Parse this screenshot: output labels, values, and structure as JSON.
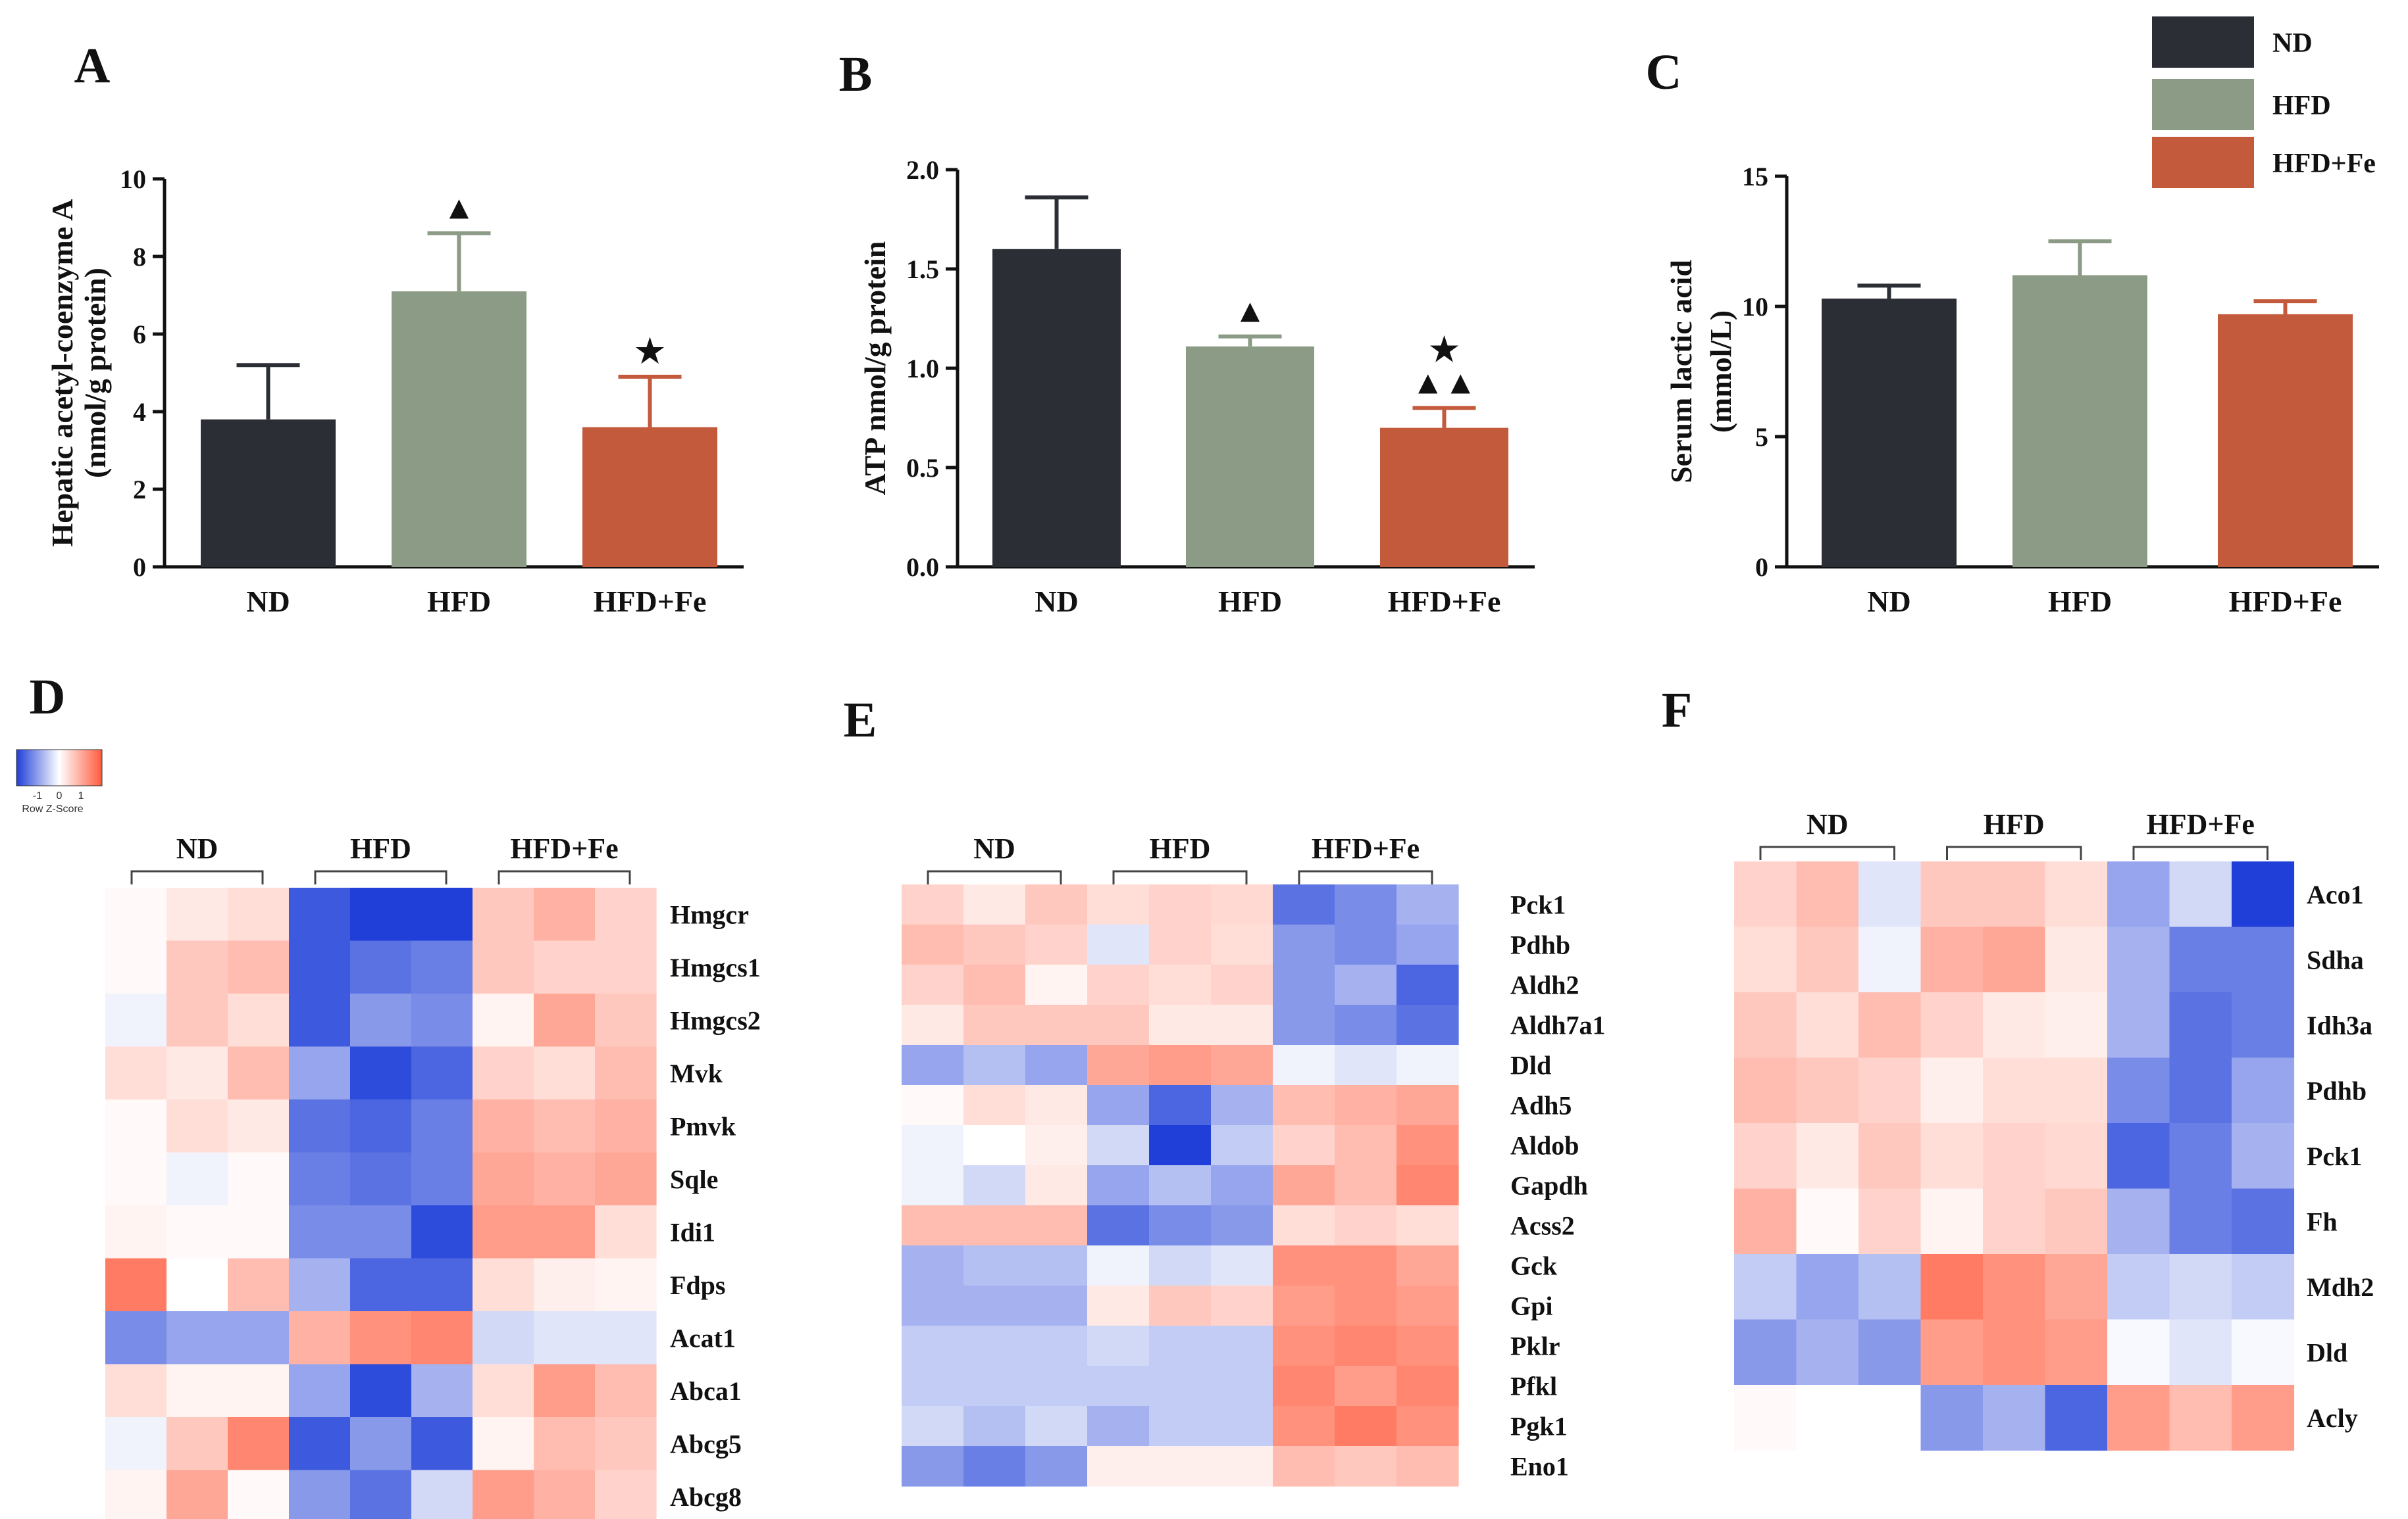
{
  "colors": {
    "nd": "#2b2e35",
    "hfd": "#8c9b86",
    "hfdfe": "#c45a3c",
    "heat_low": "#1f3fd8",
    "heat_mid": "#ffffff",
    "heat_high": "#ff5a3c"
  },
  "legend": {
    "entries": [
      {
        "label": "ND",
        "color": "#2b2e35"
      },
      {
        "label": "HFD",
        "color": "#8c9b86"
      },
      {
        "label": "HFD+Fe",
        "color": "#c45a3c"
      }
    ]
  },
  "chart_data": [
    {
      "type": "bar",
      "panel": "A",
      "ylabel_line1": "Hepatic acetyl-coenzyme A",
      "ylabel_line2": "(nmol/g protein)",
      "categories": [
        "ND",
        "HFD",
        "HFD+Fe"
      ],
      "values": [
        3.8,
        7.1,
        3.6
      ],
      "errors": [
        1.4,
        1.5,
        1.3
      ],
      "ylim": [
        0,
        10
      ],
      "yticks": [
        0,
        2,
        4,
        6,
        8,
        10
      ],
      "ytick_labels": [
        "0",
        "2",
        "4",
        "6",
        "8",
        "10"
      ],
      "annotations": [
        {
          "category": "HFD",
          "text": "▲"
        },
        {
          "category": "HFD+Fe",
          "text": "★"
        }
      ]
    },
    {
      "type": "bar",
      "panel": "B",
      "ylabel_line1": "ATP nmol/g protein",
      "ylabel_line2": "",
      "categories": [
        "ND",
        "HFD",
        "HFD+Fe"
      ],
      "values": [
        1.6,
        1.11,
        0.7
      ],
      "errors": [
        0.26,
        0.05,
        0.1
      ],
      "ylim": [
        0,
        2.0
      ],
      "yticks": [
        0,
        0.5,
        1.0,
        1.5,
        2.0
      ],
      "ytick_labels": [
        "0.0",
        "0.5",
        "1.0",
        "1.5",
        "2.0"
      ],
      "annotations": [
        {
          "category": "HFD",
          "text": "▲"
        },
        {
          "category": "HFD+Fe",
          "text": "★"
        },
        {
          "category": "HFD+Fe",
          "text": "▲▲"
        }
      ]
    },
    {
      "type": "bar",
      "panel": "C",
      "ylabel_line1": "Serum lactic acid",
      "ylabel_line2": "(mmol/L)",
      "categories": [
        "ND",
        "HFD",
        "HFD+Fe"
      ],
      "values": [
        10.3,
        11.2,
        9.7
      ],
      "errors": [
        0.5,
        1.3,
        0.5
      ],
      "ylim": [
        0,
        15
      ],
      "yticks": [
        0,
        5,
        10,
        15
      ],
      "ytick_labels": [
        "0",
        "5",
        "10",
        "15"
      ],
      "annotations": []
    },
    {
      "type": "heatmap",
      "panel": "D",
      "groups": [
        "ND",
        "HFD",
        "HFD+Fe"
      ],
      "colorscale_title": "Row Z-Score",
      "colorscale_ticks": [
        "-1",
        "0",
        "1"
      ],
      "rows": [
        "Hmgcr",
        "Hmgcs1",
        "Hmgcs2",
        "Mvk",
        "Pmvk",
        "Sqle",
        "Idi1",
        "Fdps",
        "Acat1",
        "Abca1",
        "Abcg5",
        "Abcg8"
      ],
      "values": [
        [
          0.05,
          0.2,
          0.3,
          -1.3,
          -1.5,
          -1.5,
          0.5,
          0.7,
          0.4
        ],
        [
          0.05,
          0.5,
          0.6,
          -1.3,
          -1.1,
          -1.0,
          0.5,
          0.4,
          0.4
        ],
        [
          -0.1,
          0.5,
          0.3,
          -1.3,
          -0.8,
          -0.9,
          0.1,
          0.8,
          0.5
        ],
        [
          0.3,
          0.2,
          0.6,
          -0.7,
          -1.4,
          -1.2,
          0.4,
          0.3,
          0.6
        ],
        [
          0.05,
          0.3,
          0.2,
          -1.1,
          -1.2,
          -1.0,
          0.7,
          0.6,
          0.7
        ],
        [
          0.05,
          -0.1,
          0.05,
          -1.0,
          -1.1,
          -1.0,
          0.8,
          0.7,
          0.8
        ],
        [
          0.1,
          0.05,
          0.05,
          -0.9,
          -0.9,
          -1.4,
          0.9,
          0.9,
          0.3
        ],
        [
          1.2,
          0.0,
          0.6,
          -0.6,
          -1.2,
          -1.2,
          0.3,
          0.15,
          0.1
        ],
        [
          -0.9,
          -0.7,
          -0.7,
          0.7,
          1.0,
          1.1,
          -0.3,
          -0.2,
          -0.2
        ],
        [
          0.3,
          0.1,
          0.1,
          -0.7,
          -1.4,
          -0.6,
          0.3,
          0.9,
          0.6
        ],
        [
          -0.1,
          0.5,
          1.1,
          -1.3,
          -0.8,
          -1.3,
          0.1,
          0.6,
          0.5
        ],
        [
          0.1,
          0.8,
          0.05,
          -0.8,
          -1.1,
          -0.3,
          0.9,
          0.7,
          0.4
        ]
      ]
    },
    {
      "type": "heatmap",
      "panel": "E",
      "groups": [
        "ND",
        "HFD",
        "HFD+Fe"
      ],
      "rows": [
        "Pck1",
        "Pdhb",
        "Aldh2",
        "Aldh7a1",
        "Dld",
        "Adh5",
        "Aldob",
        "Gapdh",
        "Acss2",
        "Gck",
        "Gpi",
        "Pklr",
        "Pfkl",
        "Pgk1",
        "Eno1"
      ],
      "values": [
        [
          0.4,
          0.2,
          0.5,
          0.3,
          0.4,
          0.35,
          -1.1,
          -0.9,
          -0.6
        ],
        [
          0.6,
          0.5,
          0.4,
          -0.2,
          0.4,
          0.3,
          -0.8,
          -0.9,
          -0.7
        ],
        [
          0.4,
          0.6,
          0.1,
          0.4,
          0.3,
          0.4,
          -0.8,
          -0.6,
          -1.2
        ],
        [
          0.2,
          0.5,
          0.5,
          0.5,
          0.2,
          0.2,
          -0.8,
          -0.9,
          -1.1
        ],
        [
          -0.7,
          -0.5,
          -0.7,
          0.8,
          0.9,
          0.8,
          -0.1,
          -0.2,
          -0.1
        ],
        [
          0.05,
          0.3,
          0.2,
          -0.7,
          -1.2,
          -0.6,
          0.6,
          0.7,
          0.8
        ],
        [
          -0.1,
          0.0,
          0.15,
          -0.3,
          -1.5,
          -0.4,
          0.4,
          0.6,
          1.0
        ],
        [
          -0.1,
          -0.3,
          0.2,
          -0.7,
          -0.5,
          -0.7,
          0.8,
          0.6,
          1.1
        ],
        [
          0.6,
          0.6,
          0.6,
          -1.1,
          -0.9,
          -0.8,
          0.3,
          0.4,
          0.3
        ],
        [
          -0.6,
          -0.5,
          -0.5,
          -0.1,
          -0.3,
          -0.2,
          1.0,
          1.0,
          0.8
        ],
        [
          -0.6,
          -0.6,
          -0.6,
          0.2,
          0.5,
          0.4,
          0.9,
          1.0,
          0.9
        ],
        [
          -0.4,
          -0.4,
          -0.4,
          -0.3,
          -0.4,
          -0.4,
          1.0,
          1.1,
          1.0
        ],
        [
          -0.4,
          -0.4,
          -0.4,
          -0.4,
          -0.4,
          -0.4,
          1.1,
          0.9,
          1.1
        ],
        [
          -0.3,
          -0.5,
          -0.3,
          -0.6,
          -0.4,
          -0.4,
          1.0,
          1.2,
          1.0
        ],
        [
          -0.8,
          -1.0,
          -0.8,
          0.15,
          0.15,
          0.15,
          0.6,
          0.5,
          0.6
        ]
      ]
    },
    {
      "type": "heatmap",
      "panel": "F",
      "groups": [
        "ND",
        "HFD",
        "HFD+Fe"
      ],
      "rows": [
        "Aco1",
        "Sdha",
        "Idh3a",
        "Pdhb",
        "Pck1",
        "Fh",
        "Mdh2",
        "Dld",
        "Acly"
      ],
      "values": [
        [
          0.4,
          0.6,
          -0.2,
          0.5,
          0.5,
          0.3,
          -0.7,
          -0.3,
          -1.5
        ],
        [
          0.3,
          0.5,
          -0.1,
          0.7,
          0.8,
          0.2,
          -0.6,
          -1.0,
          -1.0
        ],
        [
          0.5,
          0.3,
          0.6,
          0.4,
          0.2,
          0.15,
          -0.6,
          -1.1,
          -1.0
        ],
        [
          0.6,
          0.5,
          0.4,
          0.15,
          0.3,
          0.3,
          -0.9,
          -1.1,
          -0.7
        ],
        [
          0.4,
          0.2,
          0.5,
          0.3,
          0.4,
          0.35,
          -1.2,
          -1.0,
          -0.6
        ],
        [
          0.7,
          0.05,
          0.4,
          0.1,
          0.4,
          0.5,
          -0.6,
          -1.0,
          -1.1
        ],
        [
          -0.4,
          -0.7,
          -0.5,
          1.2,
          1.0,
          0.8,
          -0.4,
          -0.3,
          -0.4
        ],
        [
          -0.8,
          -0.6,
          -0.8,
          0.9,
          1.0,
          0.9,
          -0.05,
          -0.2,
          -0.05
        ],
        [
          0.05,
          0.0,
          0.0,
          -0.8,
          -0.6,
          -1.2,
          0.9,
          0.6,
          0.9
        ]
      ]
    }
  ]
}
